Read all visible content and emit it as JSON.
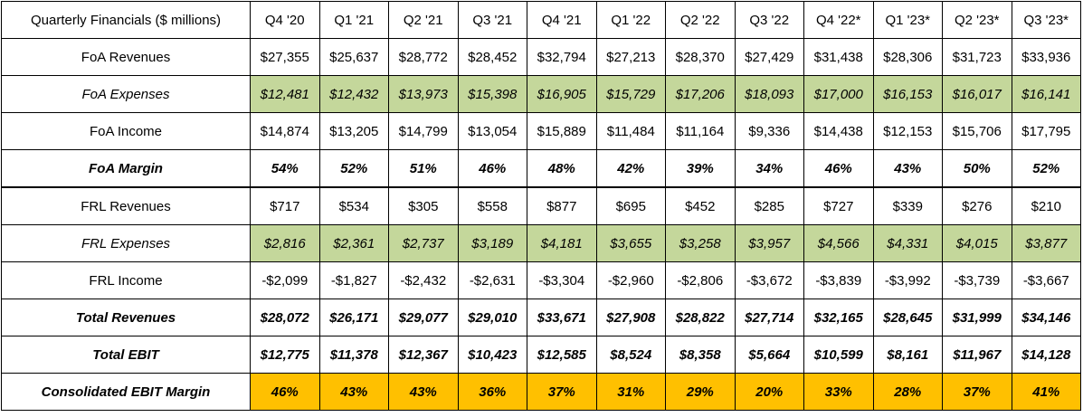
{
  "table": {
    "header_label": "Quarterly Financials ($ millions)",
    "quarters": [
      "Q4 '20",
      "Q1 '21",
      "Q2 '21",
      "Q3 '21",
      "Q4 '21",
      "Q1 '22",
      "Q2 '22",
      "Q3 '22",
      "Q4 '22*",
      "Q1 '23*",
      "Q2 '23*",
      "Q3 '23*"
    ],
    "rows": [
      {
        "label": "FoA Revenues",
        "values": [
          "$27,355",
          "$25,637",
          "$28,772",
          "$28,452",
          "$32,794",
          "$27,213",
          "$28,370",
          "$27,429",
          "$31,438",
          "$28,306",
          "$31,723",
          "$33,936"
        ]
      },
      {
        "label": "FoA Expenses",
        "values": [
          "$12,481",
          "$12,432",
          "$13,973",
          "$15,398",
          "$16,905",
          "$15,729",
          "$17,206",
          "$18,093",
          "$17,000",
          "$16,153",
          "$16,017",
          "$16,141"
        ]
      },
      {
        "label": "FoA Income",
        "values": [
          "$14,874",
          "$13,205",
          "$14,799",
          "$13,054",
          "$15,889",
          "$11,484",
          "$11,164",
          "$9,336",
          "$14,438",
          "$12,153",
          "$15,706",
          "$17,795"
        ]
      },
      {
        "label": "FoA Margin",
        "values": [
          "54%",
          "52%",
          "51%",
          "46%",
          "48%",
          "42%",
          "39%",
          "34%",
          "46%",
          "43%",
          "50%",
          "52%"
        ]
      },
      {
        "label": "FRL Revenues",
        "values": [
          "$717",
          "$534",
          "$305",
          "$558",
          "$877",
          "$695",
          "$452",
          "$285",
          "$727",
          "$339",
          "$276",
          "$210"
        ]
      },
      {
        "label": "FRL Expenses",
        "values": [
          "$2,816",
          "$2,361",
          "$2,737",
          "$3,189",
          "$4,181",
          "$3,655",
          "$3,258",
          "$3,957",
          "$4,566",
          "$4,331",
          "$4,015",
          "$3,877"
        ]
      },
      {
        "label": "FRL Income",
        "values": [
          "-$2,099",
          "-$1,827",
          "-$2,432",
          "-$2,631",
          "-$3,304",
          "-$2,960",
          "-$2,806",
          "-$3,672",
          "-$3,839",
          "-$3,992",
          "-$3,739",
          "-$3,667"
        ]
      },
      {
        "label": "Total Revenues",
        "values": [
          "$28,072",
          "$26,171",
          "$29,077",
          "$29,010",
          "$33,671",
          "$27,908",
          "$28,822",
          "$27,714",
          "$32,165",
          "$28,645",
          "$31,999",
          "$34,146"
        ]
      },
      {
        "label": "Total EBIT",
        "values": [
          "$12,775",
          "$11,378",
          "$12,367",
          "$10,423",
          "$12,585",
          "$8,524",
          "$8,358",
          "$5,664",
          "$10,599",
          "$8,161",
          "$11,967",
          "$14,128"
        ]
      },
      {
        "label": "Consolidated EBIT Margin",
        "values": [
          "46%",
          "43%",
          "43%",
          "36%",
          "37%",
          "31%",
          "29%",
          "20%",
          "33%",
          "28%",
          "37%",
          "41%"
        ]
      }
    ]
  },
  "colors": {
    "expense_fill": "#c4d79b",
    "margin_fill": "#ffc000"
  }
}
